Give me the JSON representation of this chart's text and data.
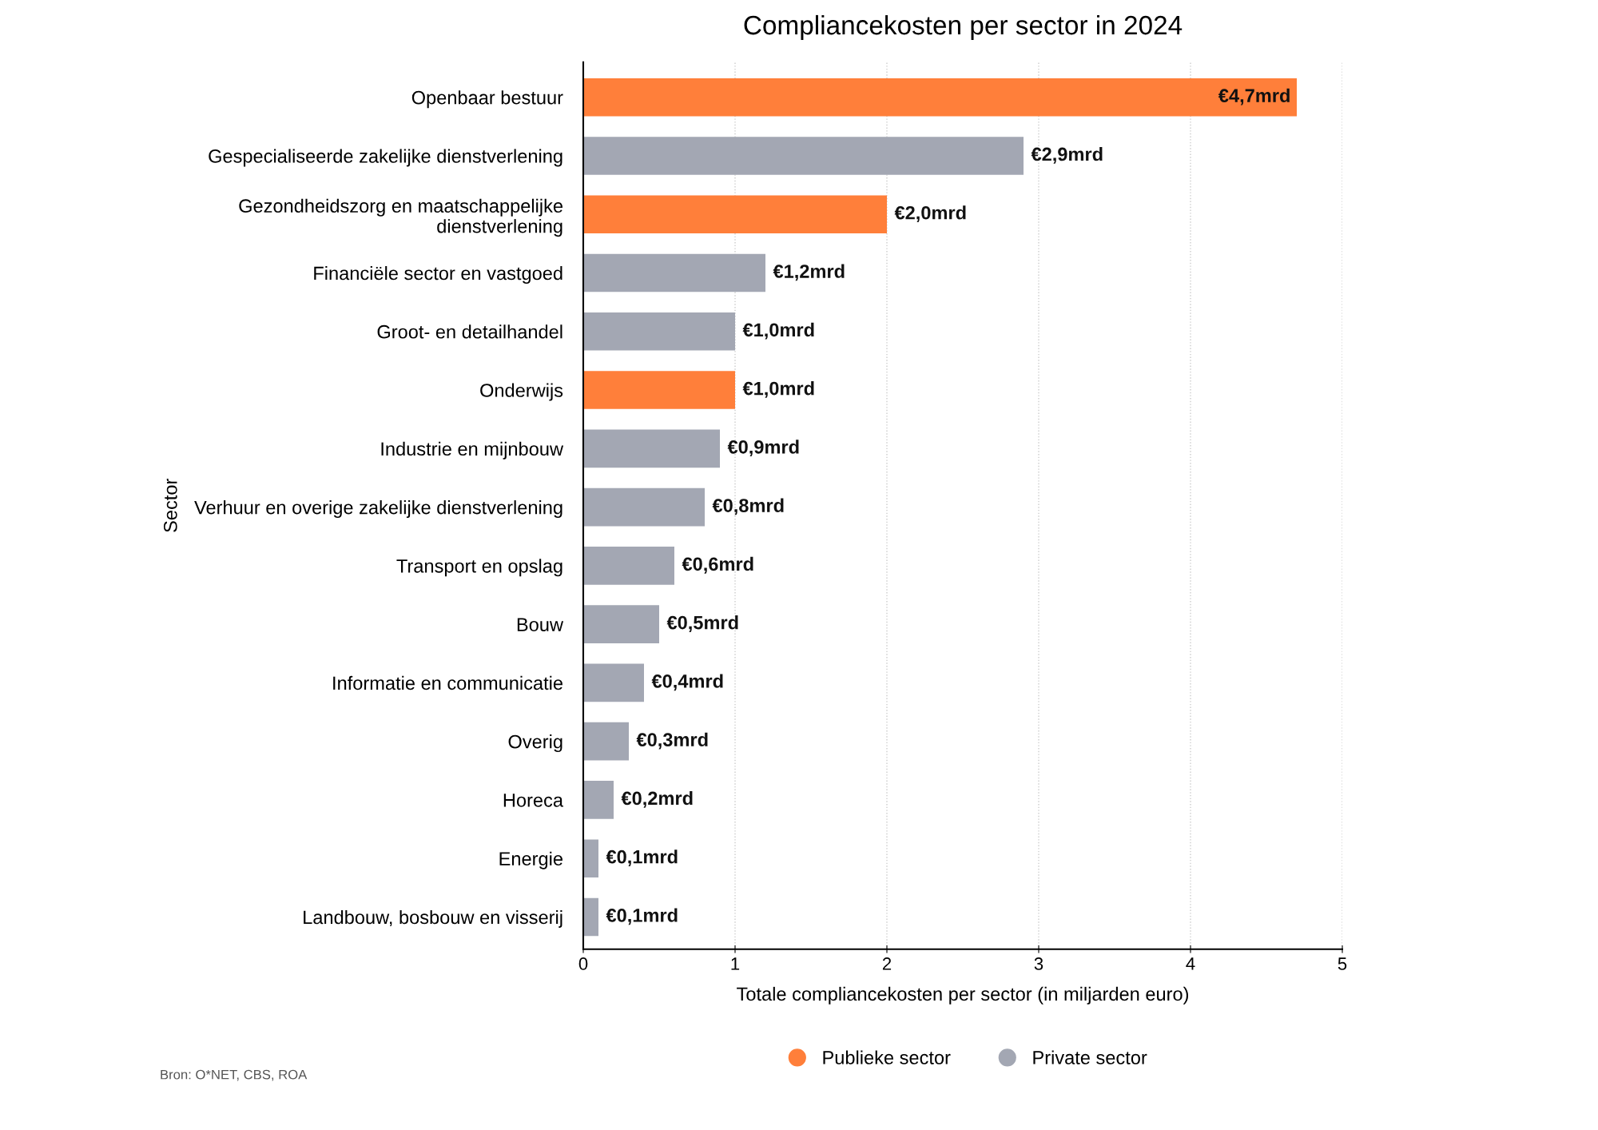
{
  "chart_data": {
    "type": "bar",
    "orientation": "horizontal",
    "title": "Compliancekosten per sector in 2024",
    "xlabel": "Totale compliancekosten per sector (in miljarden euro)",
    "ylabel": "Sector",
    "categories": [
      "Openbaar bestuur",
      "Gespecialiseerde zakelijke dienstverlening",
      "Gezondheidszorg en maatschappelijke\ndienstverlening",
      "Financiële sector en vastgoed",
      "Groot- en detailhandel",
      "Onderwijs",
      "Industrie en mijnbouw",
      "Verhuur en overige zakelijke dienstverlening",
      "Transport en opslag",
      "Bouw",
      "Informatie en communicatie",
      "Overig",
      "Horeca",
      "Energie",
      "Landbouw, bosbouw en visserij"
    ],
    "series": [
      {
        "name": "Publieke sector",
        "color": "#ff7f3a",
        "values": [
          4.7,
          null,
          2.0,
          null,
          null,
          1.0,
          null,
          null,
          null,
          null,
          null,
          null,
          null,
          null,
          null
        ],
        "value_labels": [
          "€4,7mrd",
          null,
          "€2,0mrd",
          null,
          null,
          "€1,0mrd",
          null,
          null,
          null,
          null,
          null,
          null,
          null,
          null,
          null
        ]
      },
      {
        "name": "Private sector",
        "color": "#a3a7b3",
        "values": [
          null,
          2.9,
          null,
          1.2,
          1.0,
          null,
          0.9,
          0.8,
          0.6,
          0.5,
          0.4,
          0.3,
          0.2,
          0.1,
          0.1
        ],
        "value_labels": [
          null,
          "€2,9mrd",
          null,
          "€1,2mrd",
          "€1,0mrd",
          null,
          "€0,9mrd",
          "€0,8mrd",
          "€0,6mrd",
          "€0,5mrd",
          "€0,4mrd",
          "€0,3mrd",
          "€0,2mrd",
          "€0,1mrd",
          "€0,1mrd"
        ]
      }
    ],
    "xlim": [
      0,
      5
    ],
    "xticks": [
      0,
      1,
      2,
      3,
      4,
      5
    ],
    "grid": "x",
    "legend": "bottom",
    "annotations": [
      "Bron: O*NET, CBS, ROA"
    ]
  }
}
